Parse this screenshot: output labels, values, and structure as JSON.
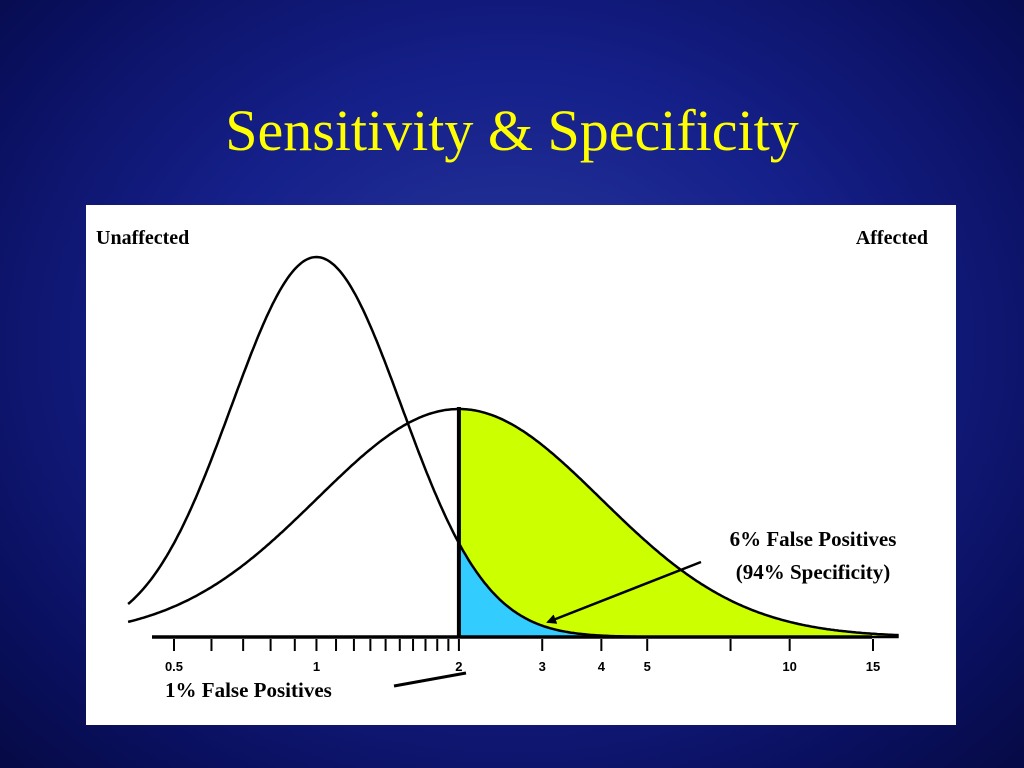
{
  "slide": {
    "title": "Sensitivity & Specificity"
  },
  "colors": {
    "background": "#15208a",
    "title": "#ffff00",
    "affected_tail": "#ccff00",
    "unaffected_tail": "#33ccff"
  },
  "chart_data": {
    "type": "area",
    "x_scale": "log",
    "xlim": [
      0.4,
      17
    ],
    "ticks": [
      {
        "value": 0.5,
        "label": "0.5"
      },
      {
        "value": 1,
        "label": "1"
      },
      {
        "value": 2,
        "label": "2"
      },
      {
        "value": 3,
        "label": "3"
      },
      {
        "value": 4,
        "label": "4"
      },
      {
        "value": 5,
        "label": "5"
      },
      {
        "value": 10,
        "label": "10"
      },
      {
        "value": 15,
        "label": "15"
      }
    ],
    "minor_ticks": [
      0.6,
      0.7,
      0.8,
      0.9,
      1.1,
      1.2,
      1.3,
      1.4,
      1.5,
      1.6,
      1.7,
      1.8,
      1.9,
      7.5
    ],
    "cutoff": 2,
    "series": [
      {
        "name": "Unaffected",
        "median": 1.0,
        "log_sd": 0.18,
        "peak": 1.0
      },
      {
        "name": "Affected",
        "median": 2.0,
        "log_sd": 0.3,
        "peak": 0.6
      }
    ],
    "annotations": {
      "unaffected": "Unaffected",
      "affected": "Affected",
      "fp6_line1": "6% False Positives",
      "fp6_line2": "(94% Specificity)",
      "fp1": "1% False Positives"
    }
  }
}
